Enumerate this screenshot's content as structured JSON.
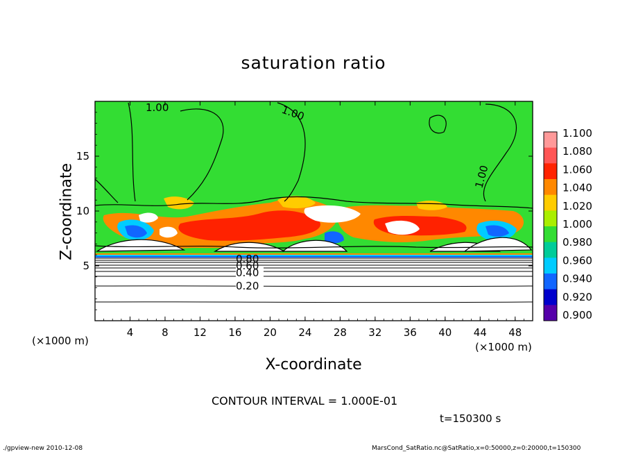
{
  "chart_data": {
    "type": "heatmap",
    "title": "saturation ratio",
    "xlabel": "X-coordinate",
    "ylabel": "Z-coordinate",
    "x_unit_label_left": "(×1000 m)",
    "x_unit_label_right": "(×1000 m)",
    "xlim": [
      0,
      50
    ],
    "ylim": [
      0,
      20
    ],
    "x_ticks": [
      "4",
      "8",
      "12",
      "16",
      "20",
      "24",
      "28",
      "32",
      "36",
      "40",
      "44",
      "48"
    ],
    "y_ticks": [
      "5",
      "10",
      "15"
    ],
    "colorbar": {
      "labels": [
        "1.100",
        "1.080",
        "1.060",
        "1.040",
        "1.020",
        "1.000",
        "0.980",
        "0.960",
        "0.940",
        "0.920",
        "0.900"
      ],
      "colors": [
        "#ff9999",
        "#ff5555",
        "#ff2200",
        "#ff8800",
        "#ffcc00",
        "#aaee00",
        "#33dd33",
        "#00cc99",
        "#00ccff",
        "#1166ff",
        "#0000cc",
        "#5500aa"
      ]
    },
    "contour_labels": [
      "1.00",
      "1.00",
      "1.00",
      "0.20",
      "0.40",
      "0.60",
      "0.80"
    ],
    "annotation_interval": "CONTOUR INTERVAL = 1.000E-01",
    "annotation_time": "t=150300 s"
  },
  "footer": {
    "left": "./gpview-new   2010-12-08",
    "right": "MarsCond_SatRatio.nc@SatRatio,x=0:50000,z=0:20000,t=150300"
  }
}
